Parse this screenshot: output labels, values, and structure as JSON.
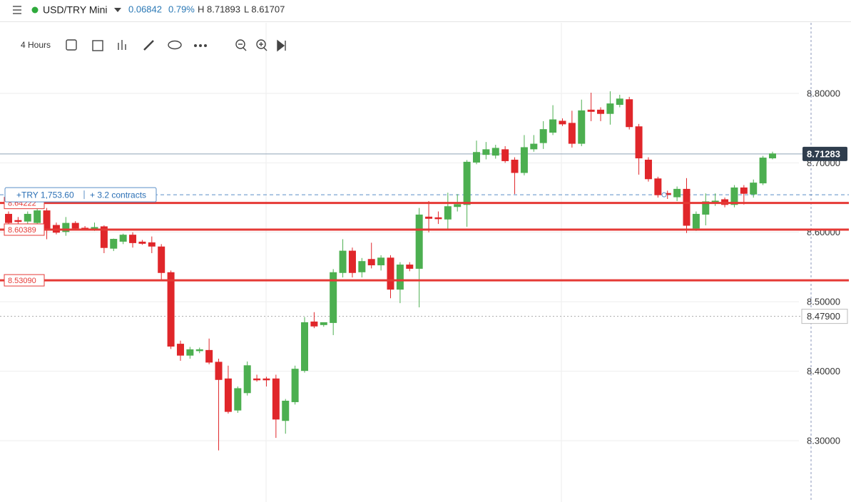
{
  "header": {
    "symbol": "USD/TRY Mini",
    "change": "0.06842",
    "change_pct": "0.79%",
    "high": "H 8.71893",
    "low": "L 8.61707"
  },
  "toolbar": {
    "interval": "4 Hours"
  },
  "chart_data": {
    "type": "candlestick",
    "up_color": "#4caf50",
    "down_color": "#e0262a",
    "ylim": [
      8.2117,
      8.9016
    ],
    "yticks": [
      {
        "value": 8.3,
        "label": "8.30000"
      },
      {
        "value": 8.4,
        "label": "8.40000"
      },
      {
        "value": 8.5,
        "label": "8.50000"
      },
      {
        "value": 8.6,
        "label": "8.60000"
      },
      {
        "value": 8.7,
        "label": "8.70000"
      },
      {
        "value": 8.8,
        "label": "8.80000"
      }
    ],
    "grid": true,
    "open": [
      8.626,
      8.617,
      8.616,
      8.614,
      8.631,
      8.61,
      8.601,
      8.613,
      8.606,
      8.605,
      8.608,
      8.577,
      8.587,
      8.596,
      8.586,
      8.585,
      8.579,
      8.542,
      8.439,
      8.423,
      8.43,
      8.43,
      8.413,
      8.389,
      8.344,
      8.369,
      8.389,
      8.389,
      8.389,
      8.329,
      8.356,
      8.401,
      8.471,
      8.467,
      8.47,
      8.542,
      8.573,
      8.543,
      8.561,
      8.553,
      8.563,
      8.518,
      8.553,
      8.548,
      8.622,
      8.621,
      8.619,
      8.637,
      8.64,
      8.701,
      8.712,
      8.711,
      8.719,
      8.704,
      8.686,
      8.72,
      8.729,
      8.744,
      8.76,
      8.757,
      8.728,
      8.776,
      8.776,
      8.771,
      8.784,
      8.791,
      8.752,
      8.704,
      8.677,
      8.656,
      8.651,
      8.662,
      8.606,
      8.626,
      8.644,
      8.647,
      8.64,
      8.664,
      8.655,
      8.671,
      8.707
    ],
    "high": [
      8.63,
      8.622,
      8.63,
      8.636,
      8.635,
      8.614,
      8.622,
      8.616,
      8.609,
      8.614,
      8.61,
      8.591,
      8.598,
      8.6,
      8.589,
      8.594,
      8.583,
      8.545,
      8.444,
      8.435,
      8.434,
      8.447,
      8.418,
      8.408,
      8.378,
      8.414,
      8.395,
      8.392,
      8.395,
      8.36,
      8.408,
      8.478,
      8.485,
      8.47,
      8.547,
      8.59,
      8.578,
      8.563,
      8.585,
      8.567,
      8.567,
      8.557,
      8.557,
      8.635,
      8.645,
      8.63,
      8.657,
      8.655,
      8.704,
      8.732,
      8.73,
      8.726,
      8.724,
      8.708,
      8.74,
      8.74,
      8.76,
      8.783,
      8.764,
      8.775,
      8.791,
      8.801,
      8.78,
      8.803,
      8.798,
      8.795,
      8.756,
      8.708,
      8.68,
      8.66,
      8.666,
      8.678,
      8.63,
      8.656,
      8.656,
      8.65,
      8.668,
      8.668,
      8.676,
      8.71,
      8.716
    ],
    "low": [
      8.61,
      8.612,
      8.612,
      8.61,
      8.59,
      8.597,
      8.595,
      8.603,
      8.603,
      8.602,
      8.57,
      8.573,
      8.583,
      8.578,
      8.582,
      8.57,
      8.53,
      8.432,
      8.415,
      8.418,
      8.426,
      8.41,
      8.286,
      8.339,
      8.34,
      8.365,
      8.385,
      8.378,
      8.304,
      8.31,
      8.352,
      8.398,
      8.462,
      8.464,
      8.452,
      8.535,
      8.535,
      8.535,
      8.548,
      8.545,
      8.505,
      8.498,
      8.544,
      8.492,
      8.6,
      8.612,
      8.604,
      8.63,
      8.608,
      8.698,
      8.705,
      8.706,
      8.7,
      8.655,
      8.682,
      8.716,
      8.72,
      8.74,
      8.753,
      8.722,
      8.724,
      8.76,
      8.76,
      8.755,
      8.78,
      8.748,
      8.683,
      8.673,
      8.65,
      8.648,
      8.645,
      8.599,
      8.602,
      8.61,
      8.638,
      8.636,
      8.636,
      8.64,
      8.65,
      8.668,
      8.705
    ],
    "close": [
      8.614,
      8.616,
      8.626,
      8.631,
      8.604,
      8.6,
      8.613,
      8.606,
      8.605,
      8.607,
      8.578,
      8.59,
      8.596,
      8.585,
      8.584,
      8.58,
      8.542,
      8.436,
      8.423,
      8.431,
      8.431,
      8.413,
      8.388,
      8.342,
      8.375,
      8.408,
      8.388,
      8.388,
      8.331,
      8.357,
      8.403,
      8.47,
      8.465,
      8.47,
      8.542,
      8.573,
      8.542,
      8.558,
      8.553,
      8.563,
      8.518,
      8.553,
      8.548,
      8.625,
      8.62,
      8.62,
      8.637,
      8.64,
      8.701,
      8.715,
      8.719,
      8.721,
      8.703,
      8.686,
      8.722,
      8.727,
      8.748,
      8.762,
      8.756,
      8.728,
      8.775,
      8.774,
      8.771,
      8.785,
      8.792,
      8.752,
      8.707,
      8.677,
      8.654,
      8.655,
      8.662,
      8.61,
      8.626,
      8.644,
      8.645,
      8.64,
      8.664,
      8.656,
      8.671,
      8.707,
      8.713
    ],
    "levels": [
      {
        "value": 8.64222,
        "label": "8.64222"
      },
      {
        "value": 8.60389,
        "label": "8.60389"
      },
      {
        "value": 8.5309,
        "label": "8.53090"
      }
    ],
    "level_color": "#e53935",
    "last_price": {
      "value": 8.71283,
      "label": "8.71283"
    },
    "crosshair": {
      "value": 8.479,
      "label": "8.47900"
    },
    "position": {
      "value": 8.654,
      "pnl": "+TRY 1,753.60",
      "size": "+ 3.2 contracts"
    }
  }
}
